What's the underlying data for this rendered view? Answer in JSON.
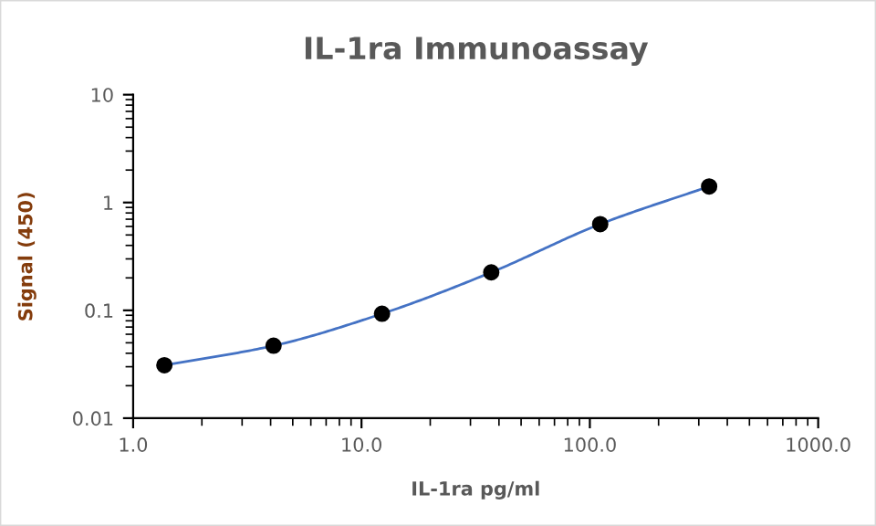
{
  "chart_data": {
    "type": "scatter",
    "title": "IL-1ra Immunoassay",
    "xlabel": "IL-1ra pg/ml",
    "ylabel": "Signal (450)",
    "log": "xy",
    "grid": false,
    "xlim": [
      1,
      1000
    ],
    "xticks": [
      {
        "value": 1,
        "label": "1.0"
      },
      {
        "value": 10,
        "label": "10.0"
      },
      {
        "value": 100,
        "label": "100.0"
      },
      {
        "value": 1000,
        "label": "1000.0"
      }
    ],
    "ylim": [
      0.01,
      10
    ],
    "yticks": [
      {
        "value": 0.01,
        "label": "0.01"
      },
      {
        "value": 0.1,
        "label": "0.1"
      },
      1,
      10
    ],
    "series": [
      {
        "color": "#000000",
        "marker": "circle",
        "x": [
          1.37,
          4.12,
          12.3,
          37,
          111,
          333
        ],
        "values": [
          0.031,
          0.047,
          0.093,
          0.225,
          0.63,
          1.41
        ]
      },
      {
        "type": "line",
        "color": "#4472c4",
        "line_style": "solid",
        "x": [
          1.37,
          4.12,
          12.3,
          37,
          111,
          333
        ],
        "values": [
          0.031,
          0.047,
          0.093,
          0.225,
          0.63,
          1.41
        ]
      }
    ]
  }
}
